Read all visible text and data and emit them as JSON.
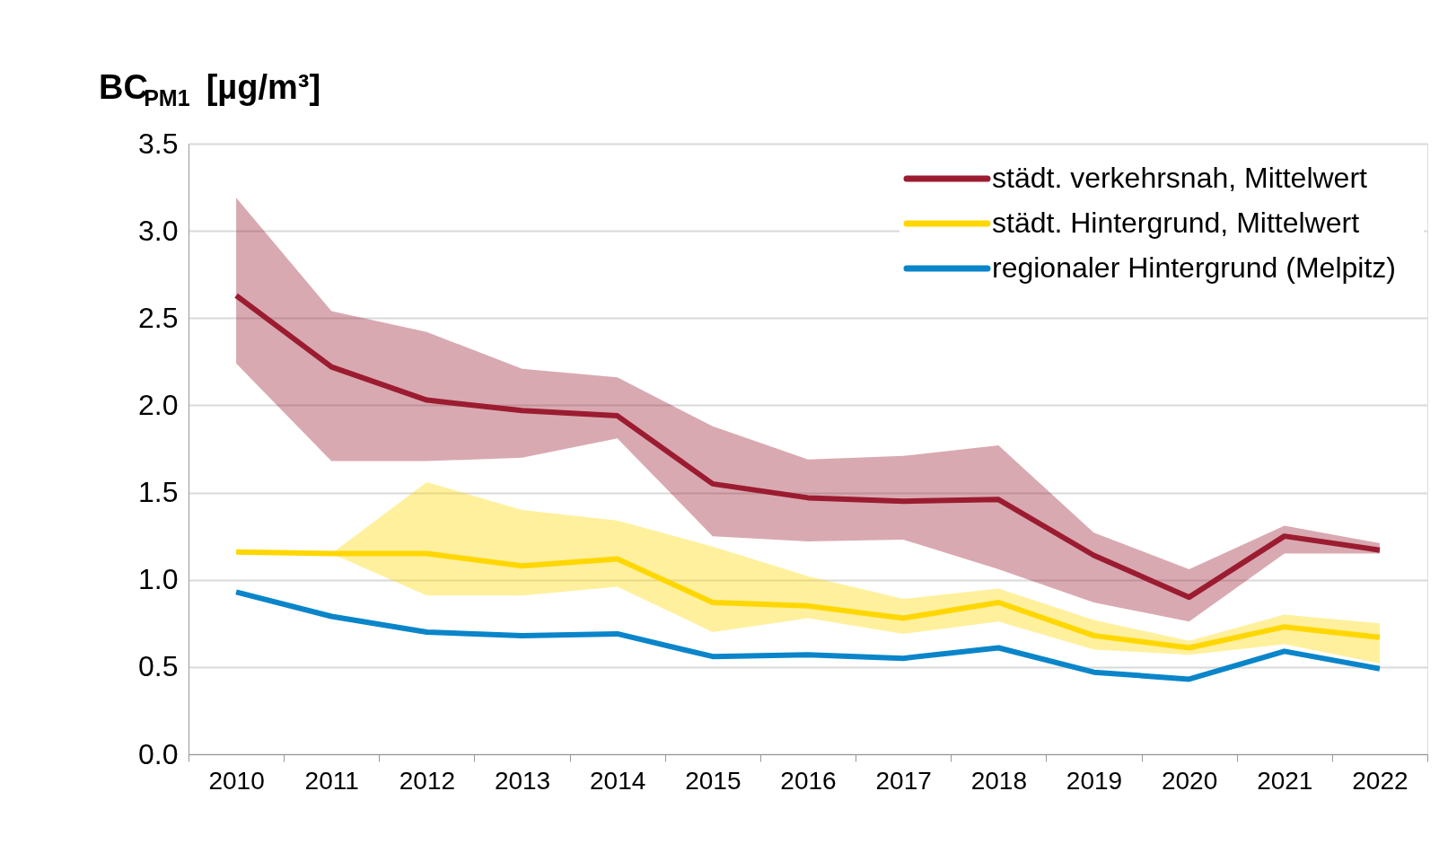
{
  "chart_data": {
    "type": "line",
    "ylabel": "BC$_{PM1}$ [µg/m³]",
    "categories": [
      "2010",
      "2011",
      "2012",
      "2013",
      "2014",
      "2015",
      "2016",
      "2017",
      "2018",
      "2019",
      "2020",
      "2021",
      "2022"
    ],
    "series": [
      {
        "name": "städt. verkehrsnah, Mittelwert",
        "color": "#9b1c31",
        "values": [
          2.63,
          2.22,
          2.03,
          1.97,
          1.94,
          1.55,
          1.47,
          1.45,
          1.46,
          1.14,
          0.9,
          1.25,
          1.17
        ],
        "lower": [
          2.24,
          1.68,
          1.68,
          1.7,
          1.81,
          1.25,
          1.22,
          1.23,
          1.06,
          0.87,
          0.76,
          1.15,
          1.15
        ],
        "upper": [
          3.19,
          2.54,
          2.42,
          2.21,
          2.16,
          1.88,
          1.69,
          1.71,
          1.77,
          1.27,
          1.06,
          1.31,
          1.21
        ]
      },
      {
        "name": "städt. Hintergrund, Mittelwert",
        "color": "#ffd700",
        "values": [
          1.16,
          1.15,
          1.15,
          1.08,
          1.12,
          0.87,
          0.85,
          0.78,
          0.87,
          0.68,
          0.61,
          0.73,
          0.67
        ],
        "lower": [
          null,
          1.15,
          0.91,
          0.91,
          0.96,
          0.7,
          0.78,
          0.69,
          0.76,
          0.6,
          0.57,
          0.63,
          0.52
        ],
        "upper": [
          null,
          1.15,
          1.56,
          1.4,
          1.34,
          1.19,
          1.02,
          0.89,
          0.95,
          0.77,
          0.65,
          0.8,
          0.75
        ]
      },
      {
        "name": "regionaler Hintergrund (Melpitz)",
        "color": "#0a85c9",
        "values": [
          0.93,
          0.79,
          0.7,
          0.68,
          0.69,
          0.56,
          0.57,
          0.55,
          0.61,
          0.47,
          0.43,
          0.59,
          0.49
        ]
      }
    ],
    "ylim": [
      0,
      3.5
    ],
    "yticks": [
      {
        "value": 0,
        "label": "0.0"
      },
      0.5,
      {
        "value": 1,
        "label": "1.0"
      },
      1.5,
      {
        "value": 2,
        "label": "2.0"
      },
      2.5,
      {
        "value": 3,
        "label": "3.0"
      },
      3.5
    ],
    "grid": "y",
    "legend": "top right",
    "line_style": "solid",
    "marker": "none"
  }
}
